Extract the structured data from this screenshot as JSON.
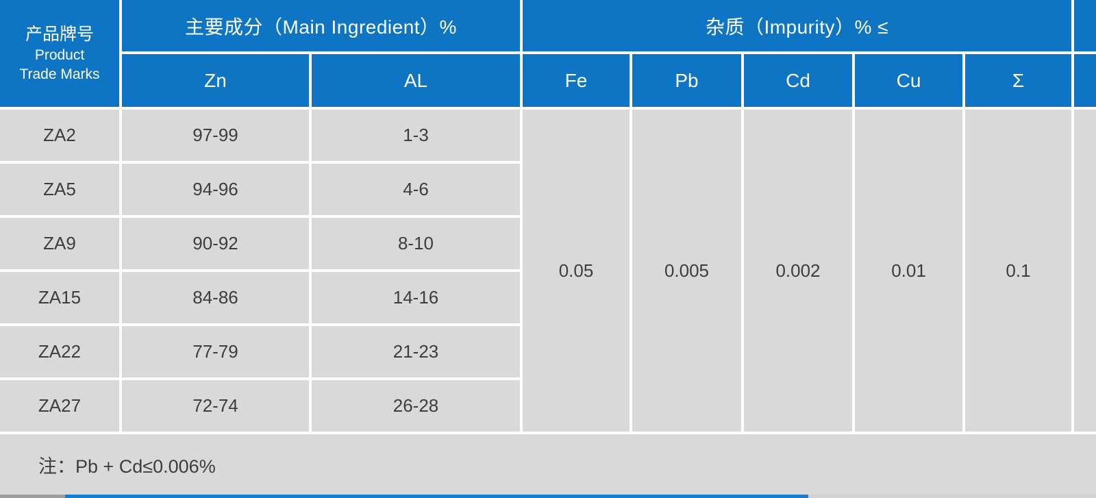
{
  "colors": {
    "header_blue": "#0e75c4",
    "cell_gray": "#d9d9d9",
    "header_text": "#ffffff",
    "body_text": "#3d3d3d",
    "divider_white": "#ffffff",
    "strip_gray_left": "#9e9e9e",
    "strip_blue": "#1a7cc9",
    "strip_gray_right": "#d0d0d0"
  },
  "table": {
    "product_header": {
      "cn": "产品牌号",
      "en1": "Product",
      "en2": "Trade Marks"
    },
    "groups": {
      "main_ingredient": "主要成分（Main Ingredient）%",
      "impurity": "杂质（Impurity）% ≤"
    },
    "sub_headers": {
      "zn": "Zn",
      "al": "AL",
      "fe": "Fe",
      "pb": "Pb",
      "cd": "Cd",
      "cu": "Cu",
      "sigma": "Σ"
    },
    "rows": [
      {
        "mark": "ZA2",
        "zn": "97-99",
        "al": "1-3"
      },
      {
        "mark": "ZA5",
        "zn": "94-96",
        "al": "4-6"
      },
      {
        "mark": "ZA9",
        "zn": "90-92",
        "al": "8-10"
      },
      {
        "mark": "ZA15",
        "zn": "84-86",
        "al": "14-16"
      },
      {
        "mark": "ZA22",
        "zn": "77-79",
        "al": "21-23"
      },
      {
        "mark": "ZA27",
        "zn": "72-74",
        "al": "26-28"
      }
    ],
    "impurity_limits": {
      "fe": "0.05",
      "pb": "0.005",
      "cd": "0.002",
      "cu": "0.01",
      "sigma": "0.1"
    },
    "note": "注：Pb + Cd≤0.006%"
  }
}
